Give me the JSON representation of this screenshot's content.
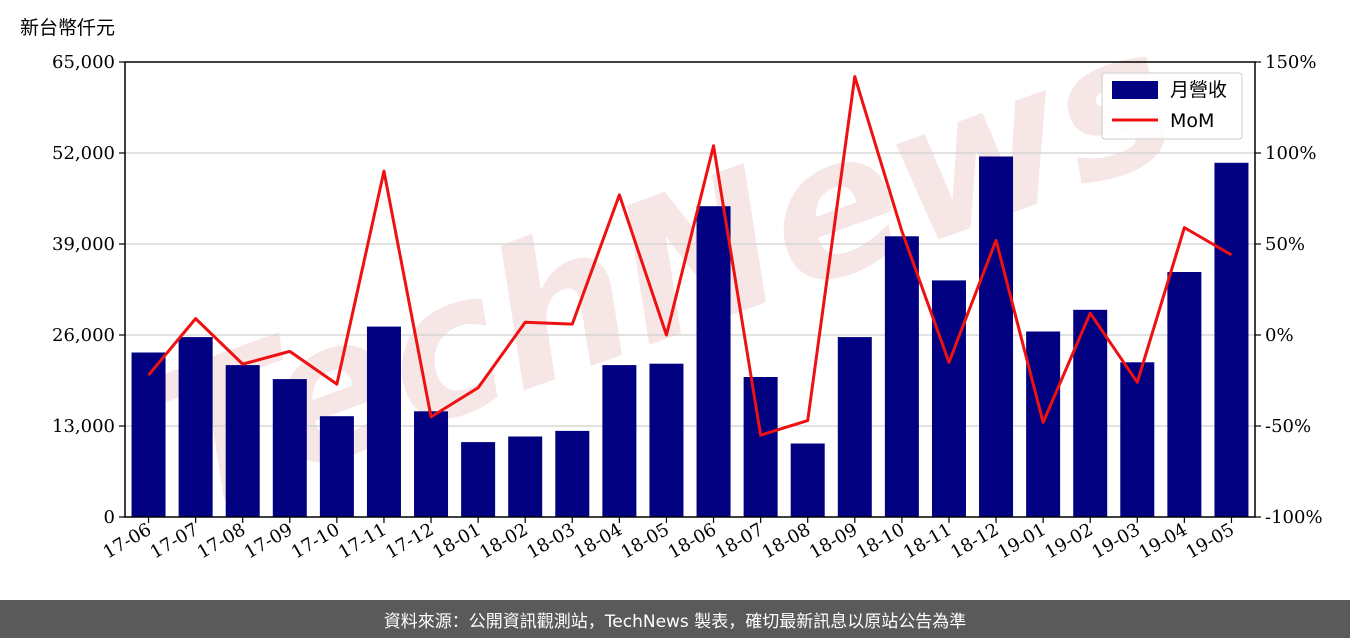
{
  "chart_data": {
    "type": "bar",
    "y_unit_label": "新台幣仟元",
    "categories": [
      "17-06",
      "17-07",
      "17-08",
      "17-09",
      "17-10",
      "17-11",
      "17-12",
      "18-01",
      "18-02",
      "18-03",
      "18-04",
      "18-05",
      "18-06",
      "18-07",
      "18-08",
      "18-09",
      "18-10",
      "18-11",
      "18-12",
      "19-01",
      "19-02",
      "19-03",
      "19-04",
      "19-05"
    ],
    "series": [
      {
        "name": "月營收",
        "type": "bar",
        "axis": "left",
        "color": "#000080",
        "values": [
          23500,
          25700,
          21700,
          19700,
          14400,
          27200,
          15100,
          10700,
          11500,
          12300,
          21700,
          21900,
          44400,
          20000,
          10500,
          25700,
          40100,
          33800,
          51500,
          26500,
          29600,
          22100,
          35000,
          50600
        ]
      },
      {
        "name": "MoM",
        "type": "line",
        "axis": "right",
        "color": "#ee1111",
        "values": [
          -22,
          9,
          -16,
          -9,
          -27,
          90,
          -45,
          -29,
          7,
          6,
          77,
          0,
          104,
          -55,
          -47,
          142,
          57,
          -15,
          52,
          -48,
          12,
          -26,
          59,
          44
        ]
      }
    ],
    "y_left": {
      "ylim": [
        0,
        65000
      ],
      "ticks": [
        "0",
        "13,000",
        "26,000",
        "39,000",
        "52,000",
        "65,000"
      ],
      "tick_values": [
        0,
        13000,
        26000,
        39000,
        52000,
        65000
      ]
    },
    "y_right": {
      "ylim": [
        -100,
        150
      ],
      "ticks": [
        "-100%",
        "-50%",
        "0%",
        "50%",
        "100%",
        "150%"
      ],
      "tick_values": [
        -100,
        -50,
        0,
        50,
        100,
        150
      ]
    },
    "grid": "horizontal",
    "legend": {
      "position": "top-right"
    }
  },
  "watermark": {
    "text": "TechNews",
    "color": "#e9b7b7"
  },
  "footer": {
    "text": "資料來源：公開資訊觀測站，TechNews 製表，確切最新訊息以原站公告為準"
  }
}
